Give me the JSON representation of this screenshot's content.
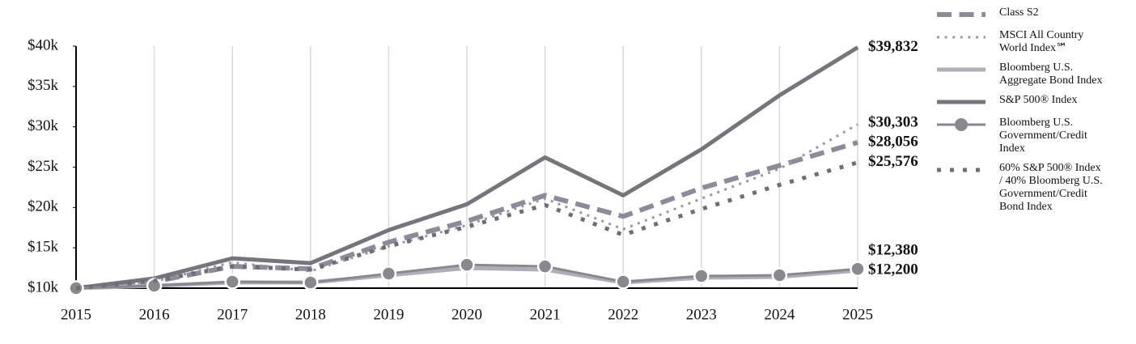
{
  "chart_data": {
    "type": "line",
    "x": [
      2015,
      2016,
      2017,
      2018,
      2019,
      2020,
      2021,
      2022,
      2023,
      2024,
      2025
    ],
    "xlim": [
      2015,
      2025
    ],
    "xticks": [
      2015,
      2016,
      2017,
      2018,
      2019,
      2020,
      2021,
      2022,
      2023,
      2024,
      2025
    ],
    "ylim": [
      10000,
      40000
    ],
    "yticks": [
      {
        "value": 10000,
        "label": "$10k"
      },
      {
        "value": 15000,
        "label": "$15k"
      },
      {
        "value": 20000,
        "label": "$20k"
      },
      {
        "value": 25000,
        "label": "$25k"
      },
      {
        "value": 30000,
        "label": "$30k"
      },
      {
        "value": 35000,
        "label": "$35k"
      },
      {
        "value": 40000,
        "label": "$40k"
      }
    ],
    "grid": "vertical",
    "legend": "right",
    "series": [
      {
        "name": "Class S2",
        "color": "#8e8a9a",
        "line_style": "dashed",
        "width": 6,
        "values": [
          10000,
          10800,
          12700,
          12400,
          15700,
          18300,
          21500,
          18900,
          22400,
          25200,
          28056
        ],
        "value_labels": [
          null,
          null,
          null,
          null,
          null,
          null,
          null,
          null,
          null,
          null,
          "$28,056"
        ]
      },
      {
        "name": "MSCI All Country World Index℠",
        "color": "#9a97a3",
        "line_style": "dotted",
        "width": 3,
        "values": [
          10000,
          10800,
          13200,
          12100,
          15200,
          17800,
          21100,
          17300,
          21100,
          24800,
          30303
        ],
        "value_labels": [
          null,
          null,
          null,
          null,
          null,
          null,
          null,
          null,
          null,
          null,
          "$30,303"
        ]
      },
      {
        "name": "Bloomberg U.S. Aggregate Bond Index",
        "color": "#b0adb8",
        "line_style": "solid",
        "width": 5,
        "values": [
          10000,
          10300,
          10700,
          10700,
          11600,
          12500,
          12300,
          10700,
          11300,
          11400,
          12200
        ],
        "value_labels": [
          null,
          null,
          null,
          null,
          null,
          null,
          null,
          null,
          null,
          null,
          "$12,200"
        ]
      },
      {
        "name": "S&P 500® Index",
        "color": "#76747c",
        "line_style": "solid",
        "width": 5,
        "values": [
          10000,
          11200,
          13700,
          13100,
          17200,
          20400,
          26200,
          21500,
          27200,
          33900,
          39832
        ],
        "value_labels": [
          null,
          null,
          null,
          null,
          null,
          null,
          null,
          null,
          null,
          null,
          "$39,832"
        ]
      },
      {
        "name": "Bloomberg U.S. Government/Credit Index",
        "color": "#8a888f",
        "line_style": "solid",
        "width": 3,
        "marker": "circle",
        "values": [
          10000,
          10300,
          10800,
          10700,
          11800,
          12900,
          12700,
          10800,
          11500,
          11600,
          12380
        ],
        "value_labels": [
          null,
          null,
          null,
          null,
          null,
          null,
          null,
          null,
          null,
          null,
          "$12,380"
        ]
      },
      {
        "name": "60% S&P 500® Index / 40% Bloomberg U.S. Government/Credit Bond Index",
        "color": "#6f6d75",
        "line_style": "dotted",
        "width": 5,
        "values": [
          10000,
          10900,
          12700,
          12300,
          15200,
          17600,
          20300,
          16600,
          19800,
          22800,
          25576
        ],
        "value_labels": [
          null,
          null,
          null,
          null,
          null,
          null,
          null,
          null,
          null,
          null,
          "$25,576"
        ]
      }
    ]
  }
}
